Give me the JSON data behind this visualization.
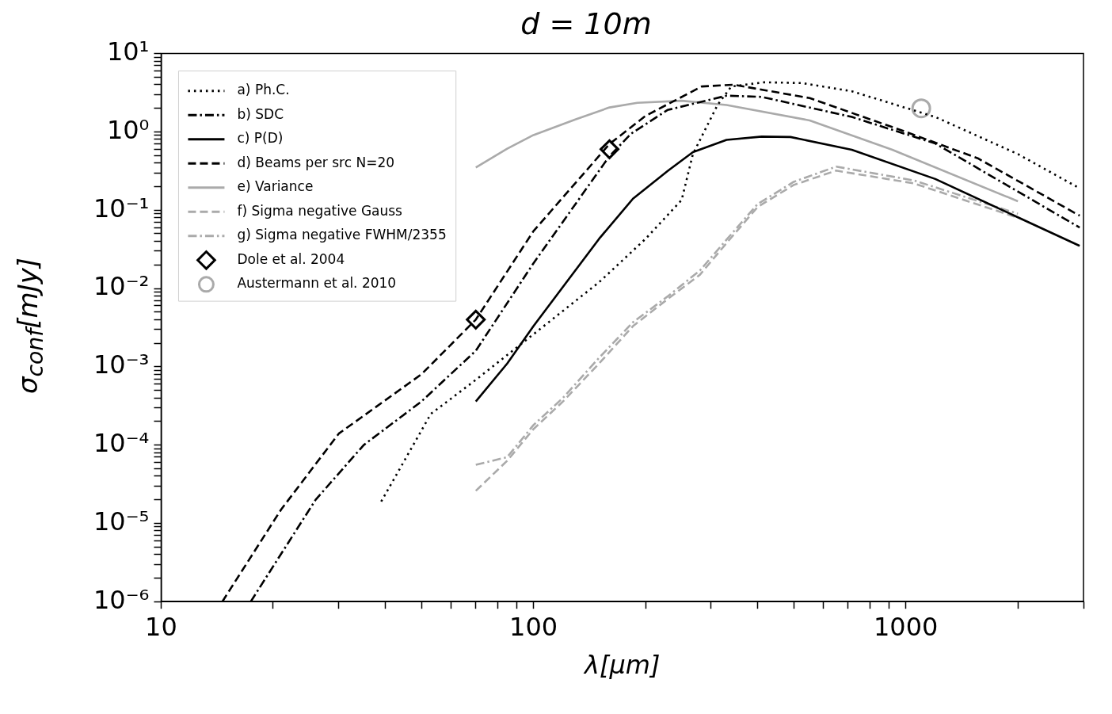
{
  "chart_data": {
    "type": "line",
    "title": "d = 10m",
    "xlabel": "λ[μm]",
    "ylabel": "σ$_{conf}$[mJy]",
    "log": "xy",
    "grid": false,
    "legend": "top left",
    "xlim": [
      10,
      3000
    ],
    "ylim": [
      1e-06,
      10
    ],
    "xticks": [
      10,
      {
        "value": 20,
        "label": null
      },
      {
        "value": 30,
        "label": null
      },
      {
        "value": 40,
        "label": null
      },
      {
        "value": 50,
        "label": null
      },
      {
        "value": 60,
        "label": null
      },
      {
        "value": 70,
        "label": null
      },
      {
        "value": 80,
        "label": null
      },
      {
        "value": 90,
        "label": null
      },
      100,
      {
        "value": 200,
        "label": null
      },
      {
        "value": 300,
        "label": null
      },
      {
        "value": 400,
        "label": null
      },
      {
        "value": 500,
        "label": null
      },
      {
        "value": 600,
        "label": null
      },
      {
        "value": 700,
        "label": null
      },
      {
        "value": 800,
        "label": null
      },
      {
        "value": 900,
        "label": null
      },
      1000,
      {
        "value": 2000,
        "label": null
      },
      {
        "value": 3000,
        "label": null
      }
    ],
    "yticks": [
      {
        "value": 1e-06,
        "label": "10⁻⁶"
      },
      {
        "value": 2e-06,
        "label": null
      },
      {
        "value": 3e-06,
        "label": null
      },
      {
        "value": 4e-06,
        "label": null
      },
      {
        "value": 5e-06,
        "label": null
      },
      {
        "value": 6e-06,
        "label": null
      },
      {
        "value": 7e-06,
        "label": null
      },
      {
        "value": 8e-06,
        "label": null
      },
      {
        "value": 9e-06,
        "label": null
      },
      {
        "value": 1e-05,
        "label": "10⁻⁵"
      },
      {
        "value": 2e-05,
        "label": null
      },
      {
        "value": 3e-05,
        "label": null
      },
      {
        "value": 4e-05,
        "label": null
      },
      {
        "value": 5e-05,
        "label": null
      },
      {
        "value": 6e-05,
        "label": null
      },
      {
        "value": 7e-05,
        "label": null
      },
      {
        "value": 8e-05,
        "label": null
      },
      {
        "value": 9e-05,
        "label": null
      },
      {
        "value": 0.0001,
        "label": "10⁻⁴"
      },
      {
        "value": 0.0002,
        "label": null
      },
      {
        "value": 0.0003,
        "label": null
      },
      {
        "value": 0.0004,
        "label": null
      },
      {
        "value": 0.0005,
        "label": null
      },
      {
        "value": 0.0006,
        "label": null
      },
      {
        "value": 0.0007,
        "label": null
      },
      {
        "value": 0.0008,
        "label": null
      },
      {
        "value": 0.0009,
        "label": null
      },
      {
        "value": 0.001,
        "label": "10⁻³"
      },
      {
        "value": 0.002,
        "label": null
      },
      {
        "value": 0.003,
        "label": null
      },
      {
        "value": 0.004,
        "label": null
      },
      {
        "value": 0.005,
        "label": null
      },
      {
        "value": 0.006,
        "label": null
      },
      {
        "value": 0.007,
        "label": null
      },
      {
        "value": 0.008,
        "label": null
      },
      {
        "value": 0.009,
        "label": null
      },
      {
        "value": 0.01,
        "label": "10⁻²"
      },
      {
        "value": 0.02,
        "label": null
      },
      {
        "value": 0.03,
        "label": null
      },
      {
        "value": 0.04,
        "label": null
      },
      {
        "value": 0.05,
        "label": null
      },
      {
        "value": 0.06,
        "label": null
      },
      {
        "value": 0.07,
        "label": null
      },
      {
        "value": 0.08,
        "label": null
      },
      {
        "value": 0.09,
        "label": null
      },
      {
        "value": 0.1,
        "label": "10⁻¹"
      },
      {
        "value": 0.2,
        "label": null
      },
      {
        "value": 0.3,
        "label": null
      },
      {
        "value": 0.4,
        "label": null
      },
      {
        "value": 0.5,
        "label": null
      },
      {
        "value": 0.6,
        "label": null
      },
      {
        "value": 0.7,
        "label": null
      },
      {
        "value": 0.8,
        "label": null
      },
      {
        "value": 0.9,
        "label": null
      },
      {
        "value": 1,
        "label": "10⁰"
      },
      {
        "value": 2,
        "label": null
      },
      {
        "value": 3,
        "label": null
      },
      {
        "value": 4,
        "label": null
      },
      {
        "value": 5,
        "label": null
      },
      {
        "value": 6,
        "label": null
      },
      {
        "value": 7,
        "label": null
      },
      {
        "value": 8,
        "label": null
      },
      {
        "value": 9,
        "label": null
      },
      {
        "value": 10,
        "label": "10¹"
      }
    ],
    "series": [
      {
        "name": "a) Ph.C.",
        "color": "#000000",
        "type": "line",
        "line_style": "dotted",
        "x": [
          39,
          45,
          53,
          70,
          100,
          150,
          200,
          250,
          268,
          312,
          340,
          417,
          526,
          716,
          1200,
          2000,
          2930
        ],
        "values": [
          1.9e-05,
          6.3e-05,
          0.00025,
          0.00068,
          0.0026,
          0.012,
          0.043,
          0.135,
          0.52,
          2.2,
          3.8,
          4.3,
          4.2,
          3.3,
          1.55,
          0.52,
          0.19
        ]
      },
      {
        "name": "b) SDC",
        "color": "#000000",
        "type": "line",
        "line_style": "dashdot",
        "x": [
          17.4,
          26,
          35,
          50,
          70,
          100,
          160,
          183,
          229,
          330,
          410,
          716,
          1200,
          2930
        ],
        "values": [
          1e-06,
          2e-05,
          0.0001,
          0.00036,
          0.0016,
          0.021,
          0.49,
          0.95,
          1.9,
          2.9,
          2.8,
          1.55,
          0.71,
          0.06
        ]
      },
      {
        "name": "c) P(D)",
        "color": "#000000",
        "type": "line",
        "line_style": "solid",
        "x": [
          70,
          85,
          100,
          120,
          150,
          185,
          230,
          268,
          330,
          410,
          490,
          716,
          1200,
          2000,
          2930
        ],
        "values": [
          0.00036,
          0.0011,
          0.0033,
          0.0105,
          0.043,
          0.14,
          0.32,
          0.55,
          0.79,
          0.87,
          0.86,
          0.59,
          0.25,
          0.081,
          0.035
        ]
      },
      {
        "name": "d) Beams per src N=20",
        "color": "#000000",
        "type": "line",
        "line_style": "dashed",
        "x": [
          14.6,
          21,
          30,
          50,
          70,
          100,
          160,
          200,
          283,
          345,
          552,
          1000,
          1560,
          2930
        ],
        "values": [
          1e-06,
          1.5e-05,
          0.00014,
          0.0008,
          0.004,
          0.054,
          0.7,
          1.6,
          3.8,
          4,
          2.7,
          1,
          0.46,
          0.085
        ]
      },
      {
        "name": "e) Variance",
        "color": "#aaaaaa",
        "type": "line",
        "line_style": "solid",
        "x": [
          70,
          85,
          100,
          130,
          160,
          190,
          250,
          330,
          552,
          920,
          2000
        ],
        "values": [
          0.35,
          0.61,
          0.91,
          1.45,
          2.05,
          2.35,
          2.5,
          2.2,
          1.4,
          0.59,
          0.13
        ]
      },
      {
        "name": "f) Sigma negative Gauss",
        "color": "#aaaaaa",
        "type": "line",
        "line_style": "dashed",
        "x": [
          70,
          85,
          100,
          120,
          150,
          185,
          230,
          280,
          330,
          400,
          500,
          650,
          1050,
          2000
        ],
        "values": [
          2.6e-05,
          6.3e-05,
          0.00016,
          0.00036,
          0.0011,
          0.0033,
          0.0074,
          0.015,
          0.038,
          0.11,
          0.21,
          0.32,
          0.22,
          0.08
        ]
      },
      {
        "name": "g) Sigma negative FWHM/2355",
        "color": "#aaaaaa",
        "type": "line",
        "line_style": "dashdot",
        "x": [
          70,
          85,
          100,
          120,
          150,
          185,
          230,
          280,
          330,
          400,
          500,
          650,
          1050,
          2000
        ],
        "values": [
          5.6e-05,
          7e-05,
          0.00018,
          0.0004,
          0.0013,
          0.0037,
          0.008,
          0.017,
          0.042,
          0.12,
          0.23,
          0.36,
          0.24,
          0.09
        ]
      },
      {
        "name": "Dole et al. 2004",
        "color": "#000000",
        "type": "scatter",
        "marker": "diamond",
        "x": [
          70,
          160
        ],
        "values": [
          0.004,
          0.6
        ]
      },
      {
        "name": "Austermann et al. 2010",
        "color": "#aaaaaa",
        "type": "scatter",
        "marker": "circle",
        "x": [
          1100
        ],
        "values": [
          2
        ]
      }
    ]
  }
}
